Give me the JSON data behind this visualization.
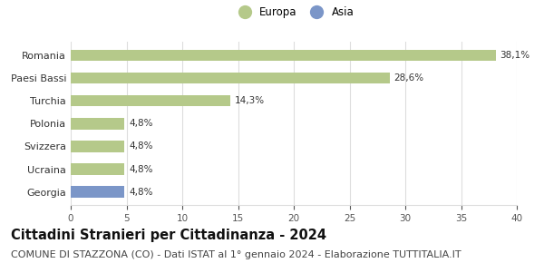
{
  "categories": [
    "Georgia",
    "Ucraina",
    "Svizzera",
    "Polonia",
    "Turchia",
    "Paesi Bassi",
    "Romania"
  ],
  "values": [
    4.8,
    4.8,
    4.8,
    4.8,
    14.3,
    28.6,
    38.1
  ],
  "labels": [
    "4,8%",
    "4,8%",
    "4,8%",
    "4,8%",
    "14,3%",
    "28,6%",
    "38,1%"
  ],
  "colors": [
    "#7b96c8",
    "#b5c98a",
    "#b5c98a",
    "#b5c98a",
    "#b5c98a",
    "#b5c98a",
    "#b5c98a"
  ],
  "legend_items": [
    {
      "label": "Europa",
      "color": "#b5c98a"
    },
    {
      "label": "Asia",
      "color": "#7b96c8"
    }
  ],
  "xlim": [
    0,
    40
  ],
  "xticks": [
    0,
    5,
    10,
    15,
    20,
    25,
    30,
    35,
    40
  ],
  "title": "Cittadini Stranieri per Cittadinanza - 2024",
  "subtitle": "COMUNE DI STAZZONA (CO) - Dati ISTAT al 1° gennaio 2024 - Elaborazione TUTTITALIA.IT",
  "title_fontsize": 10.5,
  "subtitle_fontsize": 8,
  "label_fontsize": 7.5,
  "tick_fontsize": 7.5,
  "bg_color": "#ffffff",
  "grid_color": "#dddddd",
  "bar_height": 0.5
}
